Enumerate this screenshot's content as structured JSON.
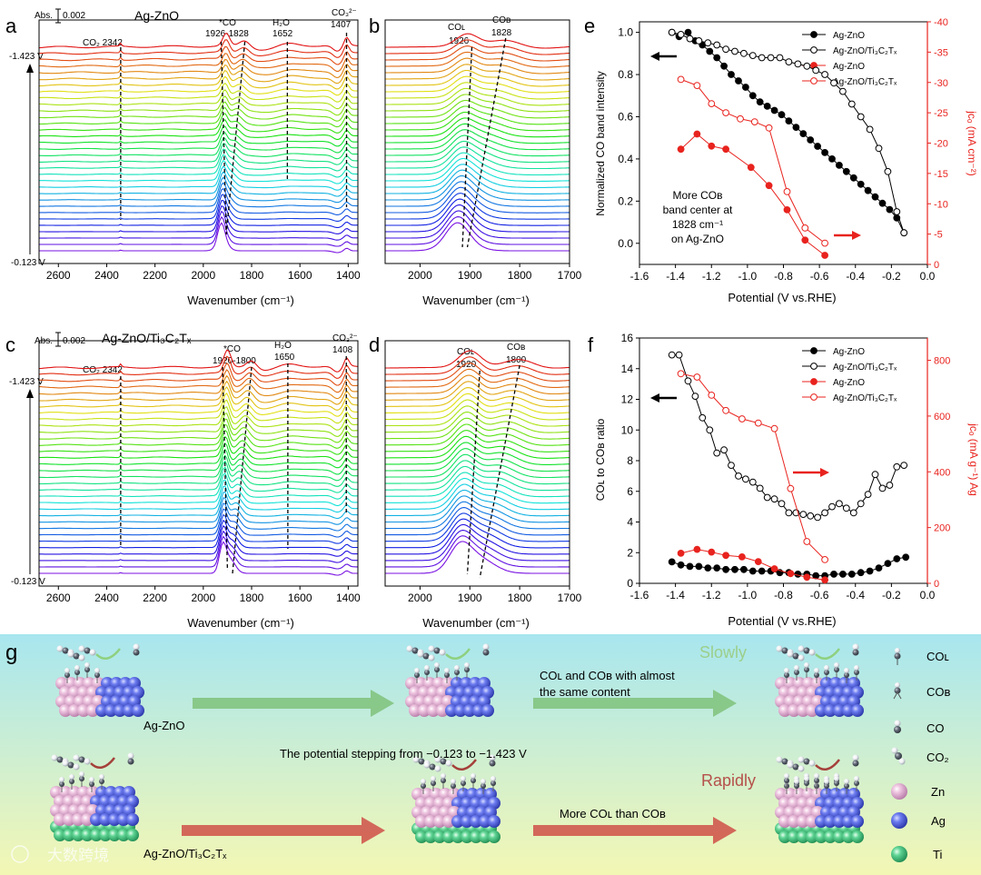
{
  "panel_a": {
    "letter": "a",
    "title": "Ag-ZnO",
    "abs_label": "Abs.",
    "abs_value": "0.002",
    "v_top": "-1.423 V",
    "v_bottom": "-0.123 V",
    "xlabel": "Wavenumber (cm⁻¹)",
    "ann": [
      "CO₂  2342",
      "*CO",
      "1926-1828",
      "H₂O",
      "1652",
      "CO₃²⁻",
      "1407"
    ]
  },
  "panel_b": {
    "letter": "b",
    "xlabel": "Wavenumber (cm⁻¹)",
    "ann": [
      "COʟ",
      "1926",
      "COʙ",
      "1828"
    ]
  },
  "panel_c": {
    "letter": "c",
    "title": "Ag-ZnO/Ti₃C₂Tₓ",
    "abs_label": "Abs.",
    "abs_value": "0.002",
    "v_top": "-1.423 V",
    "v_bottom": "-0.123 V",
    "xlabel": "Wavenumber (cm⁻¹)",
    "ann": [
      "CO₂  2342",
      "*CO",
      "1920-1800",
      "H₂O",
      "1650",
      "CO₃²⁻",
      "1408"
    ]
  },
  "panel_d": {
    "letter": "d",
    "xlabel": "Wavenumber (cm⁻¹)",
    "ann": [
      "COʟ",
      "1920",
      "COʙ",
      "1800"
    ]
  },
  "panel_e": {
    "letter": "e",
    "ylabel": "Normalized CO band intensity",
    "y2label": "jᴄₒ (mA cm⁻²)",
    "xlabel": "Potential (V vs.RHE)",
    "note": [
      "More COʙ",
      "band center at",
      "1828 cm⁻¹",
      "on Ag-ZnO"
    ]
  },
  "panel_f": {
    "letter": "f",
    "ylabel": "COʟ to COʙ ratio",
    "y2label": "jᴄₒ (mA g⁻¹) Ag",
    "xlabel": "Potential (V vs.RHE)"
  },
  "panel_g": {
    "letter": "g",
    "label_top": "Ag-ZnO",
    "label_bottom": "Ag-ZnO/Ti₃C₂Tₓ",
    "slowly": "Slowly",
    "rapidly": "Rapidly",
    "arrow_top_text": [
      "COʟ and COʙ with almost",
      "the same content"
    ],
    "middle_text": "The potential stepping from −0.123 to −1.423 V",
    "arrow_bottom_text": "More COʟ than COʙ",
    "legend": [
      "COʟ",
      "COʙ",
      "CO",
      "CO₂",
      "Zn",
      "Ag",
      "Ti"
    ],
    "watermark": "大数跨境"
  },
  "colors": {
    "black_series": "#000000",
    "red_series": "#e8231e",
    "zn": "#e8b4d6",
    "ag": "#5c6ee6",
    "ti": "#57c98b",
    "bg_top": "#a8e6ef",
    "bg_bottom": "#f3f7b4",
    "green_arrow": "#7fc27a",
    "red_arrow": "#cf4f48",
    "slowly": "#9ccf8a",
    "rapidly": "#b5504a"
  },
  "chart_data": [
    {
      "type": "line",
      "panel": "e",
      "xlabel": "Potential (V vs.RHE)",
      "ylabel": "Normalized CO band intensity",
      "xlim": [
        -1.6,
        0.0
      ],
      "ylim": [
        -0.1,
        1.05
      ],
      "y2lim": [
        0,
        -40
      ],
      "xticks": [
        -1.6,
        -1.4,
        -1.2,
        -1.0,
        -0.8,
        -0.6,
        -0.4,
        -0.2,
        0.0
      ],
      "yticks": [
        0.0,
        0.2,
        0.4,
        0.6,
        0.8,
        1.0
      ],
      "y2ticks": [
        0,
        -5,
        -10,
        -15,
        -20,
        -25,
        -30,
        -35,
        -40
      ],
      "series": [
        {
          "name": "Ag-ZnO",
          "axis": "left",
          "marker": "filled",
          "color": "#000000",
          "x": [
            -1.42,
            -1.38,
            -1.33,
            -1.29,
            -1.25,
            -1.21,
            -1.17,
            -1.13,
            -1.09,
            -1.05,
            -1.01,
            -0.97,
            -0.93,
            -0.89,
            -0.85,
            -0.81,
            -0.77,
            -0.73,
            -0.69,
            -0.65,
            -0.61,
            -0.57,
            -0.53,
            -0.49,
            -0.45,
            -0.41,
            -0.37,
            -0.33,
            -0.29,
            -0.25,
            -0.21,
            -0.17,
            -0.13
          ],
          "y": [
            1.0,
            0.98,
            1.0,
            0.96,
            0.94,
            0.91,
            0.88,
            0.84,
            0.8,
            0.77,
            0.74,
            0.7,
            0.67,
            0.65,
            0.63,
            0.61,
            0.58,
            0.55,
            0.52,
            0.49,
            0.46,
            0.43,
            0.4,
            0.37,
            0.34,
            0.31,
            0.28,
            0.25,
            0.22,
            0.19,
            0.16,
            0.12,
            0.05
          ]
        },
        {
          "name": "Ag-ZnO/Ti₃C₂Tₓ",
          "axis": "left",
          "marker": "open",
          "color": "#000000",
          "x": [
            -1.42,
            -1.37,
            -1.32,
            -1.27,
            -1.22,
            -1.17,
            -1.12,
            -1.07,
            -1.02,
            -0.97,
            -0.92,
            -0.87,
            -0.82,
            -0.77,
            -0.72,
            -0.67,
            -0.62,
            -0.57,
            -0.52,
            -0.47,
            -0.42,
            -0.37,
            -0.32,
            -0.27,
            -0.22,
            -0.17,
            -0.13
          ],
          "y": [
            1.0,
            0.99,
            0.97,
            0.96,
            0.95,
            0.94,
            0.92,
            0.91,
            0.9,
            0.89,
            0.88,
            0.88,
            0.88,
            0.86,
            0.85,
            0.84,
            0.82,
            0.8,
            0.76,
            0.72,
            0.66,
            0.6,
            0.54,
            0.45,
            0.34,
            0.15,
            0.05
          ]
        },
        {
          "name": "Ag-ZnO",
          "axis": "right",
          "marker": "filled",
          "color": "#e8231e",
          "x": [
            -1.37,
            -1.28,
            -1.2,
            -1.12,
            -0.98,
            -0.88,
            -0.78,
            -0.68,
            -0.57
          ],
          "y": [
            -19,
            -21.5,
            -19.5,
            -19,
            -16,
            -13,
            -9,
            -4,
            -1.5
          ]
        },
        {
          "name": "Ag-ZnO/Ti₃C₂Tₓ",
          "axis": "right",
          "marker": "open",
          "color": "#e8231e",
          "x": [
            -1.37,
            -1.28,
            -1.2,
            -1.12,
            -1.04,
            -0.96,
            -0.88,
            -0.78,
            -0.68,
            -0.57
          ],
          "y": [
            -30.5,
            -29.5,
            -26.5,
            -25,
            -24,
            -23.5,
            -22.5,
            -12,
            -6,
            -3.5
          ]
        }
      ]
    },
    {
      "type": "line",
      "panel": "f",
      "xlabel": "Potential (V vs.RHE)",
      "ylabel": "COʟ to COʙ ratio",
      "xlim": [
        -1.6,
        0.0
      ],
      "ylim": [
        0,
        16
      ],
      "y2lim": [
        0,
        880
      ],
      "xticks": [
        -1.6,
        -1.4,
        -1.2,
        -1.0,
        -0.8,
        -0.6,
        -0.4,
        -0.2,
        0.0
      ],
      "yticks": [
        0,
        2,
        4,
        6,
        8,
        10,
        12,
        14,
        16
      ],
      "y2ticks": [
        0,
        200,
        400,
        600,
        800
      ],
      "series": [
        {
          "name": "Ag-ZnO",
          "axis": "left",
          "marker": "filled",
          "color": "#000000",
          "x": [
            -1.42,
            -1.37,
            -1.32,
            -1.27,
            -1.22,
            -1.17,
            -1.12,
            -1.07,
            -1.02,
            -0.97,
            -0.92,
            -0.87,
            -0.82,
            -0.77,
            -0.72,
            -0.67,
            -0.62,
            -0.57,
            -0.52,
            -0.47,
            -0.42,
            -0.37,
            -0.32,
            -0.27,
            -0.22,
            -0.17,
            -0.12
          ],
          "y": [
            1.4,
            1.2,
            1.1,
            1.1,
            1.0,
            1.0,
            0.9,
            0.9,
            0.9,
            0.8,
            0.8,
            0.8,
            0.7,
            0.7,
            0.6,
            0.6,
            0.5,
            0.5,
            0.6,
            0.6,
            0.6,
            0.7,
            0.8,
            1.0,
            1.3,
            1.6,
            1.7
          ]
        },
        {
          "name": "Ag-ZnO/Ti₃C₂Tₓ",
          "axis": "left",
          "marker": "open",
          "color": "#000000",
          "x": [
            -1.42,
            -1.38,
            -1.33,
            -1.29,
            -1.25,
            -1.21,
            -1.17,
            -1.13,
            -1.09,
            -1.05,
            -1.01,
            -0.97,
            -0.93,
            -0.89,
            -0.85,
            -0.81,
            -0.77,
            -0.73,
            -0.69,
            -0.65,
            -0.61,
            -0.57,
            -0.53,
            -0.49,
            -0.45,
            -0.41,
            -0.37,
            -0.33,
            -0.29,
            -0.25,
            -0.21,
            -0.17,
            -0.13
          ],
          "y": [
            14.9,
            14.9,
            13.2,
            12.2,
            10.8,
            10.0,
            8.5,
            8.7,
            7.7,
            7.0,
            6.8,
            6.6,
            6.2,
            5.6,
            5.5,
            5.2,
            4.6,
            4.6,
            4.5,
            4.4,
            4.3,
            4.6,
            5.0,
            5.2,
            4.9,
            4.6,
            5.2,
            5.8,
            7.1,
            6.2,
            6.4,
            7.6,
            7.7
          ]
        },
        {
          "name": "Ag-ZnO",
          "axis": "right",
          "marker": "filled",
          "color": "#e8231e",
          "x": [
            -1.37,
            -1.28,
            -1.2,
            -1.12,
            -1.03,
            -0.94,
            -0.85,
            -0.76,
            -0.67,
            -0.57
          ],
          "y": [
            108,
            122,
            112,
            100,
            95,
            78,
            52,
            35,
            22,
            12
          ]
        },
        {
          "name": "Ag-ZnO/Ti₃C₂Tₓ",
          "axis": "right",
          "marker": "open",
          "color": "#e8231e",
          "x": [
            -1.37,
            -1.28,
            -1.2,
            -1.12,
            -1.03,
            -0.94,
            -0.85,
            -0.76,
            -0.67,
            -0.57
          ],
          "y": [
            752,
            740,
            675,
            620,
            590,
            575,
            555,
            340,
            150,
            85
          ]
        }
      ]
    },
    {
      "type": "line",
      "panel": "a",
      "xlabel": "Wavenumber (cm⁻¹)",
      "xlim": [
        2680,
        1360
      ],
      "xticks": [
        2600,
        2400,
        2200,
        2000,
        1800,
        1600,
        1400
      ],
      "series_count": 33,
      "potential_range_V": [
        -0.123,
        -1.423
      ]
    },
    {
      "type": "line",
      "panel": "b",
      "xlabel": "Wavenumber (cm⁻¹)",
      "xlim": [
        2070,
        1700
      ],
      "xticks": [
        2000,
        1900,
        1800,
        1700
      ],
      "series_count": 33
    },
    {
      "type": "line",
      "panel": "c",
      "xlabel": "Wavenumber (cm⁻¹)",
      "xlim": [
        2680,
        1360
      ],
      "xticks": [
        2600,
        2400,
        2200,
        2000,
        1800,
        1600,
        1400
      ],
      "series_count": 33,
      "potential_range_V": [
        -0.123,
        -1.423
      ]
    },
    {
      "type": "line",
      "panel": "d",
      "xlabel": "Wavenumber (cm⁻¹)",
      "xlim": [
        2070,
        1700
      ],
      "xticks": [
        2000,
        1900,
        1800,
        1700
      ],
      "series_count": 33
    }
  ]
}
